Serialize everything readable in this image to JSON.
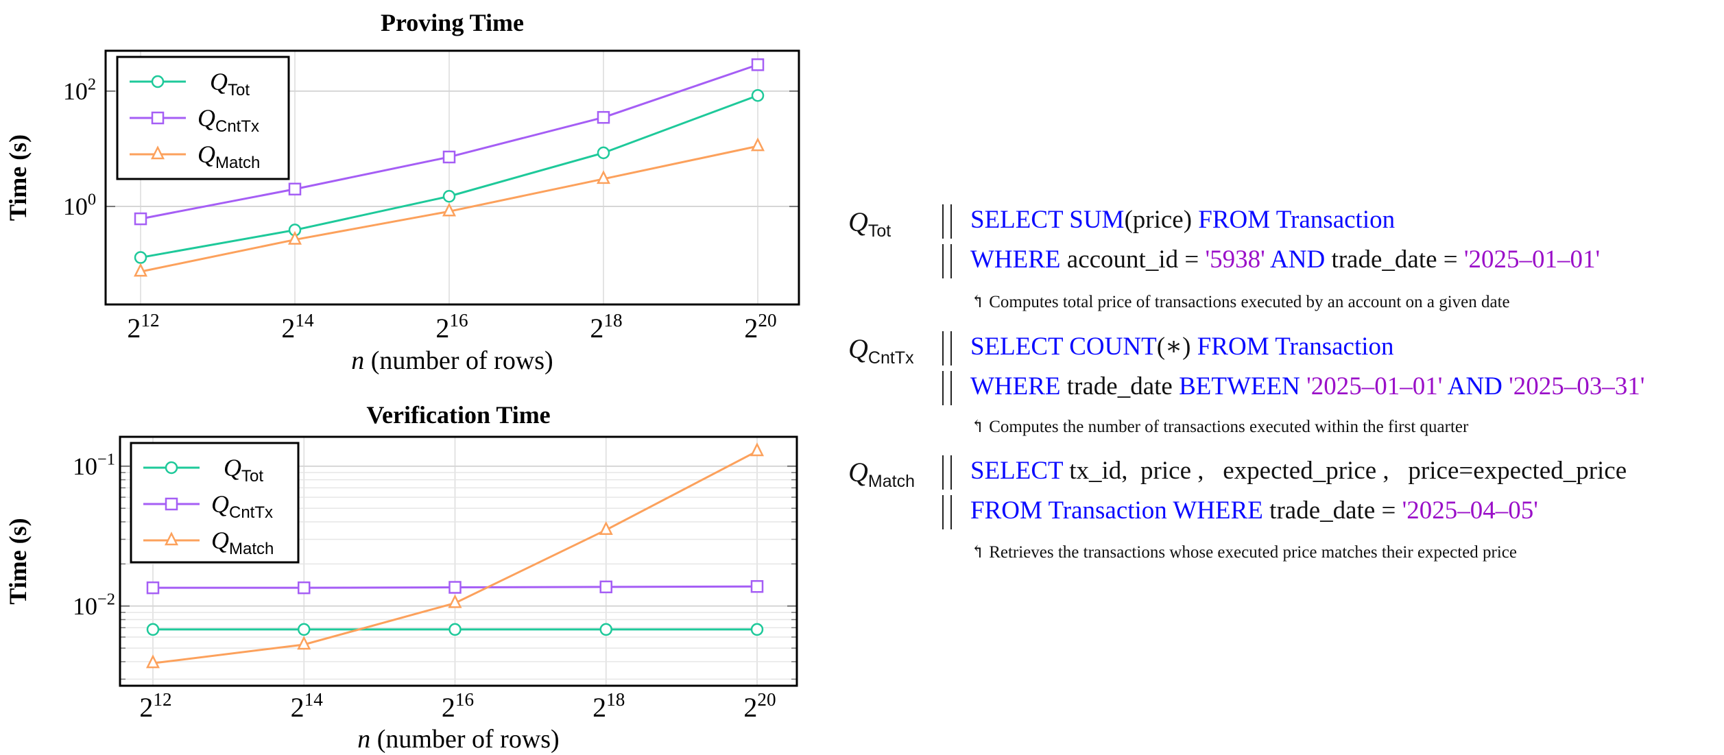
{
  "chart_data": [
    {
      "type": "line",
      "title": "Proving Time",
      "xlabel_var": "n",
      "xlabel": "(number of rows)",
      "ylabel": "Time (s)",
      "yscale": "log",
      "xscale": "log2",
      "x": [
        12,
        14,
        16,
        18,
        20
      ],
      "x_tick_labels": [
        "2^12",
        "2^14",
        "2^16",
        "2^18",
        "2^20"
      ],
      "y_tick_labels": [
        "10^0",
        "10^2"
      ],
      "y_ticks": [
        0,
        2
      ],
      "ylim_log10": [
        -1.7,
        2.7
      ],
      "grid": true,
      "legend_position": "top-left",
      "series": [
        {
          "name": "Q",
          "sub": "Tot",
          "color": "#1ec99a",
          "marker": "circle",
          "values": [
            0.13,
            0.39,
            1.5,
            8.5,
            84
          ]
        },
        {
          "name": "Q",
          "sub": "CntTx",
          "color": "#a55ef5",
          "marker": "square",
          "values": [
            0.61,
            2.0,
            7.2,
            35,
            287
          ]
        },
        {
          "name": "Q",
          "sub": "Match",
          "color": "#fca15c",
          "marker": "triangle",
          "values": [
            0.074,
            0.265,
            0.82,
            3.0,
            11.1
          ]
        }
      ]
    },
    {
      "type": "line",
      "title": "Verification Time",
      "xlabel_var": "n",
      "xlabel": "(number of rows)",
      "ylabel": "Time (s)",
      "yscale": "log",
      "xscale": "log2",
      "x": [
        12,
        14,
        16,
        18,
        20
      ],
      "x_tick_labels": [
        "2^12",
        "2^14",
        "2^16",
        "2^18",
        "2^20"
      ],
      "y_tick_labels": [
        "10^-2",
        "10^-1"
      ],
      "y_ticks": [
        -2,
        -1
      ],
      "ylim_log10": [
        -2.57,
        -0.79
      ],
      "grid": true,
      "legend_position": "top-left",
      "series": [
        {
          "name": "Q",
          "sub": "Tot",
          "color": "#1ec99a",
          "marker": "circle",
          "values": [
            0.0068,
            0.0068,
            0.0068,
            0.0068,
            0.0068
          ]
        },
        {
          "name": "Q",
          "sub": "CntTx",
          "color": "#a55ef5",
          "marker": "square",
          "values": [
            0.0135,
            0.0135,
            0.0136,
            0.0137,
            0.0138
          ]
        },
        {
          "name": "Q",
          "sub": "Match",
          "color": "#fca15c",
          "marker": "triangle",
          "values": [
            0.0039,
            0.0053,
            0.0105,
            0.035,
            0.128
          ]
        }
      ]
    }
  ],
  "queries": [
    {
      "name": "Q",
      "sub": "Tot",
      "lines": [
        [
          {
            "t": "kw",
            "v": "SELECT SUM"
          },
          {
            "t": "pl",
            "v": "(price) "
          },
          {
            "t": "kw",
            "v": "FROM Transaction"
          }
        ],
        [
          {
            "t": "kw",
            "v": "WHERE "
          },
          {
            "t": "pl",
            "v": "account_id = "
          },
          {
            "t": "str",
            "v": "'5938'"
          },
          {
            "t": "kw",
            "v": " AND "
          },
          {
            "t": "pl",
            "v": "trade_date = "
          },
          {
            "t": "str",
            "v": "'2025–01–01'"
          }
        ]
      ],
      "comment": "↰ Computes total price of transactions executed by an account on a given date"
    },
    {
      "name": "Q",
      "sub": "CntTx",
      "lines": [
        [
          {
            "t": "kw",
            "v": "SELECT COUNT"
          },
          {
            "t": "pl",
            "v": "(∗) "
          },
          {
            "t": "kw",
            "v": "FROM Transaction"
          }
        ],
        [
          {
            "t": "kw",
            "v": "WHERE "
          },
          {
            "t": "pl",
            "v": "trade_date "
          },
          {
            "t": "kw",
            "v": "BETWEEN "
          },
          {
            "t": "str",
            "v": "'2025–01–01'"
          },
          {
            "t": "kw",
            "v": " AND "
          },
          {
            "t": "str",
            "v": "'2025–03–31'"
          }
        ]
      ],
      "comment": "↰ Computes the number of transactions executed within the first quarter"
    },
    {
      "name": "Q",
      "sub": "Match",
      "lines": [
        [
          {
            "t": "kw",
            "v": "SELECT "
          },
          {
            "t": "pl",
            "v": "tx_id,  price ,   expected_price ,   price=expected_price"
          }
        ],
        [
          {
            "t": "kw",
            "v": "FROM Transaction WHERE "
          },
          {
            "t": "pl",
            "v": "trade_date = "
          },
          {
            "t": "str",
            "v": "'2025–04–05'"
          }
        ]
      ],
      "comment": "↰ Retrieves the transactions whose executed price matches their expected price"
    }
  ]
}
